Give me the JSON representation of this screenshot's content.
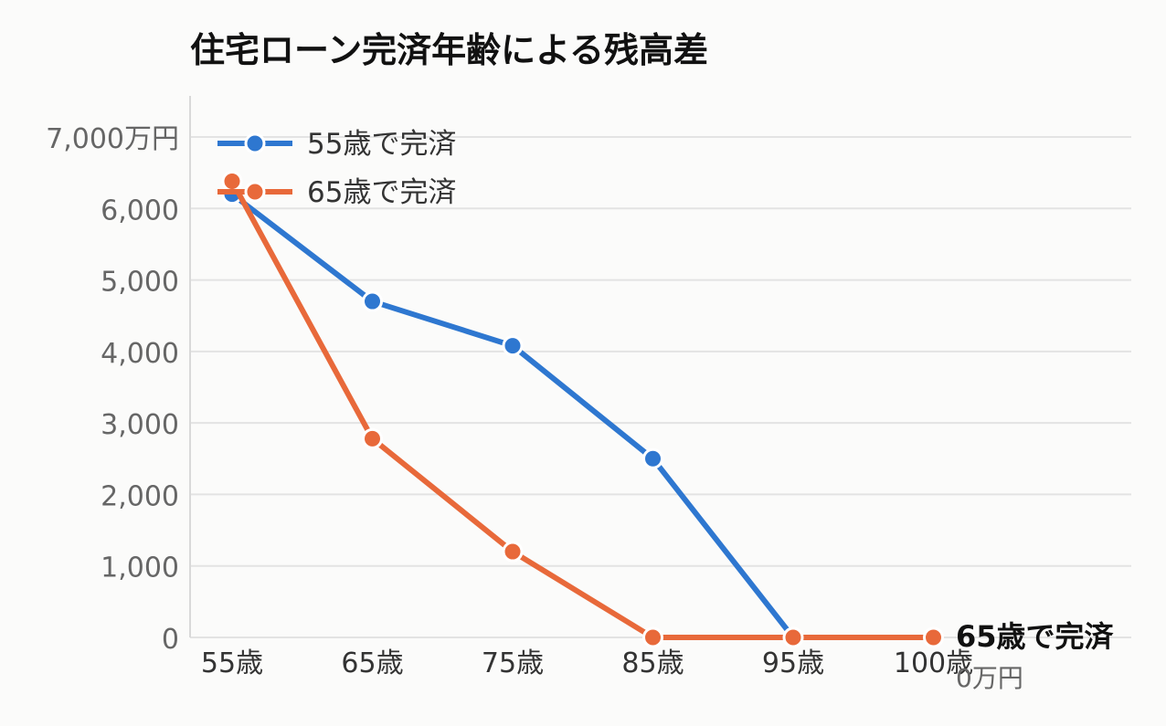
{
  "chart_data": {
    "type": "line",
    "title": "住宅ローン完済年齢による残高差",
    "categories": [
      "55歳",
      "65歳",
      "75歳",
      "85歳",
      "95歳",
      "100歳"
    ],
    "ylim": [
      0,
      7000
    ],
    "yticks": [
      {
        "value": 0,
        "label": "0"
      },
      {
        "value": 1000,
        "label": "1,000"
      },
      {
        "value": 2000,
        "label": "2,000"
      },
      {
        "value": 3000,
        "label": "3,000"
      },
      {
        "value": 4000,
        "label": "4,000"
      },
      {
        "value": 5000,
        "label": "5,000"
      },
      {
        "value": 6000,
        "label": "6,000"
      },
      {
        "value": 7000,
        "label": "7,000万円"
      }
    ],
    "grid": true,
    "legend_position": "top-left",
    "series": [
      {
        "name": "55歳で完済",
        "color": "#2e77d0",
        "values": [
          6200,
          4700,
          4080,
          2500,
          0,
          null
        ]
      },
      {
        "name": "65歳で完済",
        "color": "#e8693a",
        "values": [
          6380,
          2780,
          1200,
          0,
          0,
          0
        ]
      }
    ],
    "end_annotation": {
      "series": "65歳で完済",
      "value_label": "0万円"
    }
  }
}
